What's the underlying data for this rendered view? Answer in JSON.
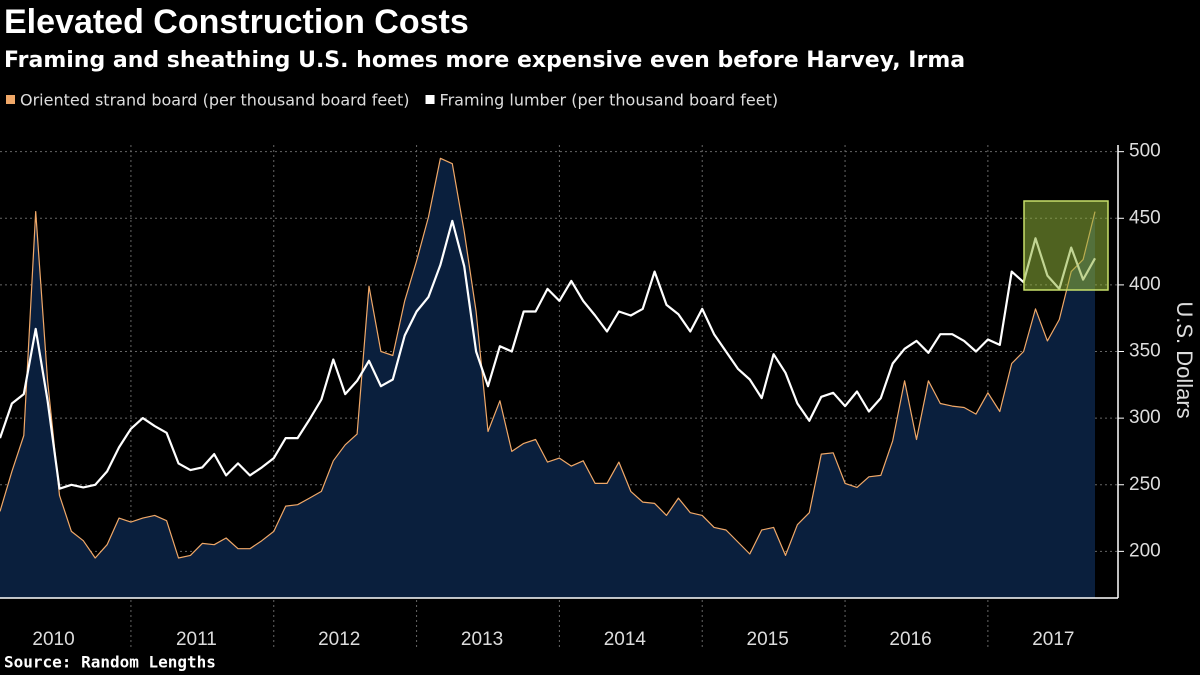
{
  "chart_data": {
    "type": "line",
    "title": "Elevated Construction Costs",
    "subtitle": "Framing and sheathing U.S. homes more expensive even before Harvey, Irma",
    "y_label": "U.S. Dollars",
    "source": "Source: Random Lengths",
    "x": [
      "2010-02",
      "2010-03",
      "2010-04",
      "2010-05",
      "2010-06",
      "2010-07",
      "2010-08",
      "2010-09",
      "2010-10",
      "2010-11",
      "2010-12",
      "2011-01",
      "2011-02",
      "2011-03",
      "2011-04",
      "2011-05",
      "2011-06",
      "2011-07",
      "2011-08",
      "2011-09",
      "2011-10",
      "2011-11",
      "2011-12",
      "2012-01",
      "2012-02",
      "2012-03",
      "2012-04",
      "2012-05",
      "2012-06",
      "2012-07",
      "2012-08",
      "2012-09",
      "2012-10",
      "2012-11",
      "2012-12",
      "2013-01",
      "2013-02",
      "2013-03",
      "2013-04",
      "2013-05",
      "2013-06",
      "2013-07",
      "2013-08",
      "2013-09",
      "2013-10",
      "2013-11",
      "2013-12",
      "2014-01",
      "2014-02",
      "2014-03",
      "2014-04",
      "2014-05",
      "2014-06",
      "2014-07",
      "2014-08",
      "2014-09",
      "2014-10",
      "2014-11",
      "2014-12",
      "2015-01",
      "2015-02",
      "2015-03",
      "2015-04",
      "2015-05",
      "2015-06",
      "2015-07",
      "2015-08",
      "2015-09",
      "2015-10",
      "2015-11",
      "2015-12",
      "2016-01",
      "2016-02",
      "2016-03",
      "2016-04",
      "2016-05",
      "2016-06",
      "2016-07",
      "2016-08",
      "2016-09",
      "2016-10",
      "2016-11",
      "2016-12",
      "2017-01",
      "2017-02",
      "2017-03",
      "2017-04",
      "2017-05",
      "2017-06",
      "2017-07",
      "2017-08",
      "2017-09",
      "2017-10"
    ],
    "xlim": [
      "2010-02",
      "2017-10"
    ],
    "xticks": [
      "2010",
      "2011",
      "2012",
      "2013",
      "2014",
      "2015",
      "2016",
      "2017"
    ],
    "series": [
      {
        "name": "Oriented strand board (per thousand board feet)",
        "color": "#f0a868",
        "fill": "#0a1f3d",
        "area": true,
        "values": [
          230,
          260,
          287,
          455,
          328,
          242,
          215,
          208,
          195,
          205,
          225,
          222,
          225,
          227,
          223,
          195,
          197,
          206,
          205,
          210,
          202,
          202,
          208,
          215,
          234,
          235,
          240,
          245,
          268,
          280,
          288,
          399,
          350,
          347,
          388,
          418,
          451,
          495,
          491,
          440,
          380,
          290,
          313,
          275,
          281,
          284,
          267,
          270,
          264,
          268,
          251,
          251,
          267,
          245,
          237,
          236,
          227,
          240,
          229,
          227,
          218,
          216,
          207,
          198,
          216,
          218,
          197,
          220,
          229,
          273,
          274,
          251,
          248,
          256,
          257,
          283,
          328,
          284,
          328,
          311,
          309,
          308,
          303,
          319,
          305,
          341,
          350,
          382,
          358,
          374,
          410,
          419,
          455
        ]
      },
      {
        "name": "Framing lumber (per thousand board feet)",
        "color": "#ffffff",
        "area": false,
        "values": [
          285,
          311,
          318,
          367,
          313,
          247,
          250,
          248,
          250,
          260,
          278,
          292,
          300,
          294,
          289,
          266,
          261,
          263,
          273,
          257,
          266,
          257,
          263,
          270,
          285,
          285,
          299,
          314,
          344,
          318,
          328,
          343,
          324,
          329,
          362,
          380,
          391,
          415,
          448,
          414,
          350,
          324,
          354,
          350,
          380,
          380,
          397,
          388,
          403,
          388,
          377,
          365,
          380,
          377,
          382,
          410,
          385,
          378,
          365,
          382,
          363,
          350,
          337,
          329,
          315,
          348,
          334,
          311,
          298,
          316,
          319,
          309,
          320,
          305,
          315,
          341,
          352,
          358,
          349,
          363,
          363,
          358,
          350,
          359,
          355,
          410,
          402,
          435,
          407,
          397,
          428,
          404,
          420
        ]
      }
    ],
    "ylim": [
      165,
      505
    ],
    "yticks": [
      200,
      250,
      300,
      350,
      400,
      450,
      500
    ],
    "y_axis_side": "right",
    "grid": true
  }
}
